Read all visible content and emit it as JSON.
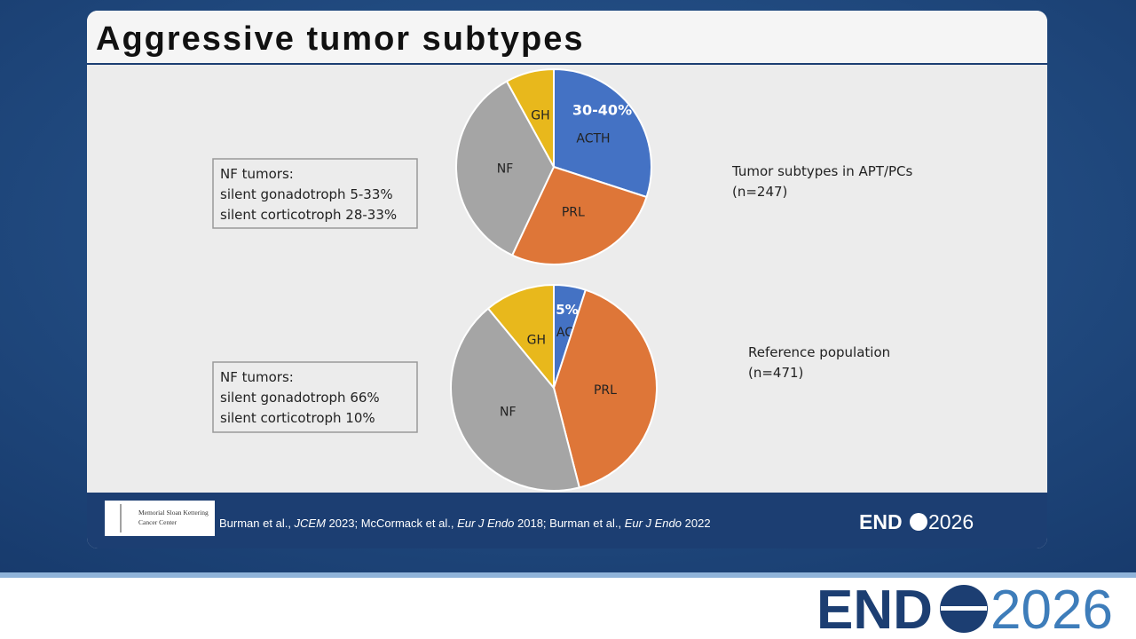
{
  "title": "Aggressive tumor subtypes",
  "chart_data": [
    {
      "type": "pie",
      "categories": [
        "ACTH",
        "PRL",
        "NF",
        "GH"
      ],
      "values": [
        30,
        27,
        35,
        8
      ],
      "colors": [
        "#4472c4",
        "#de7638",
        "#a5a5a5",
        "#e8b81c"
      ],
      "annotations": [
        "30-40%"
      ],
      "caption": [
        "Tumor subtypes in APT/PCs",
        "(n=247)"
      ],
      "note": [
        "NF tumors:",
        "silent gonadotroph 5-33%",
        "silent corticotroph 28-33%"
      ]
    },
    {
      "type": "pie",
      "categories": [
        "ACTH",
        "PRL",
        "NF",
        "GH"
      ],
      "values": [
        5,
        41,
        43,
        11
      ],
      "value_labels": [
        "5%",
        null,
        null,
        null
      ],
      "colors": [
        "#4472c4",
        "#de7638",
        "#a5a5a5",
        "#e8b81c"
      ],
      "caption": [
        "Reference population",
        "(n=471)"
      ],
      "note": [
        "NF tumors:",
        "silent gonadotroph 66%",
        "silent corticotroph 10%"
      ]
    }
  ],
  "footer": {
    "institution": [
      "Memorial Sloan Kettering",
      "Cancer Center"
    ],
    "citation": [
      "Burman et al., ",
      "JCEM",
      " 2023; McCormack et al., ",
      "Eur J Endo",
      " 2018; Burman et al., ",
      "Eur J Endo",
      " 2022"
    ],
    "logo": {
      "left": "END",
      "right": "2026"
    }
  }
}
